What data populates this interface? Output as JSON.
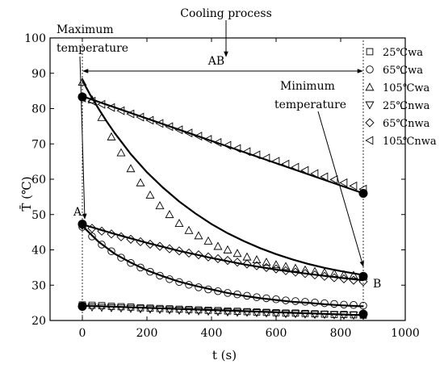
{
  "chart_data": {
    "type": "scatter",
    "title": "",
    "xlabel": "t (s)",
    "ylabel": "T̄ (℃)",
    "xlim": [
      -100,
      1000
    ],
    "ylim": [
      20,
      100
    ],
    "x_ticks": [
      0,
      200,
      400,
      600,
      800,
      1000
    ],
    "y_ticks": [
      20,
      30,
      40,
      50,
      60,
      70,
      80,
      90,
      100
    ],
    "grid": false,
    "legend_position": "right",
    "series": [
      {
        "name": "25℃wa",
        "marker": "square",
        "points": [
          [
            0,
            24.4
          ],
          [
            30,
            24.3
          ],
          [
            60,
            24.2
          ],
          [
            90,
            24.0
          ],
          [
            120,
            23.9
          ],
          [
            150,
            23.8
          ],
          [
            180,
            23.6
          ],
          [
            210,
            23.5
          ],
          [
            240,
            23.4
          ],
          [
            270,
            23.3
          ],
          [
            300,
            23.2
          ],
          [
            330,
            23.1
          ],
          [
            360,
            23.0
          ],
          [
            390,
            22.9
          ],
          [
            420,
            22.8
          ],
          [
            450,
            22.7
          ],
          [
            480,
            22.6
          ],
          [
            510,
            22.5
          ],
          [
            540,
            22.4
          ],
          [
            570,
            22.3
          ],
          [
            600,
            22.2
          ],
          [
            630,
            22.1
          ],
          [
            660,
            22.1
          ],
          [
            690,
            22.0
          ],
          [
            720,
            21.9
          ],
          [
            750,
            21.8
          ],
          [
            780,
            21.7
          ],
          [
            810,
            21.7
          ],
          [
            840,
            21.6
          ],
          [
            870,
            21.5
          ]
        ]
      },
      {
        "name": "65℃wa",
        "marker": "circle",
        "points": [
          [
            0,
            46.5
          ],
          [
            30,
            43.8
          ],
          [
            60,
            41.5
          ],
          [
            90,
            39.6
          ],
          [
            120,
            37.8
          ],
          [
            150,
            36.3
          ],
          [
            180,
            35.0
          ],
          [
            210,
            33.8
          ],
          [
            240,
            32.7
          ],
          [
            270,
            31.7
          ],
          [
            300,
            30.9
          ],
          [
            330,
            30.1
          ],
          [
            360,
            29.4
          ],
          [
            390,
            28.8
          ],
          [
            420,
            28.3
          ],
          [
            450,
            27.8
          ],
          [
            480,
            27.4
          ],
          [
            510,
            27.0
          ],
          [
            540,
            26.6
          ],
          [
            570,
            26.3
          ],
          [
            600,
            26.0
          ],
          [
            630,
            25.7
          ],
          [
            660,
            25.5
          ],
          [
            690,
            25.3
          ],
          [
            720,
            25.1
          ],
          [
            750,
            24.9
          ],
          [
            780,
            24.7
          ],
          [
            810,
            24.5
          ],
          [
            840,
            24.4
          ],
          [
            870,
            24.2
          ]
        ]
      },
      {
        "name": "105℃wa",
        "marker": "triangle-up",
        "points": [
          [
            0,
            87.5
          ],
          [
            30,
            82.5
          ],
          [
            60,
            77.5
          ],
          [
            90,
            72.0
          ],
          [
            120,
            67.5
          ],
          [
            150,
            63.0
          ],
          [
            180,
            59.0
          ],
          [
            210,
            55.5
          ],
          [
            240,
            52.5
          ],
          [
            270,
            50.0
          ],
          [
            300,
            47.5
          ],
          [
            330,
            45.5
          ],
          [
            360,
            44.0
          ],
          [
            390,
            42.5
          ],
          [
            420,
            41.0
          ],
          [
            450,
            40.0
          ],
          [
            480,
            39.0
          ],
          [
            510,
            38.0
          ],
          [
            540,
            37.2
          ],
          [
            570,
            36.5
          ],
          [
            600,
            35.8
          ],
          [
            630,
            35.3
          ],
          [
            660,
            34.8
          ],
          [
            690,
            34.3
          ],
          [
            720,
            33.9
          ],
          [
            750,
            33.6
          ],
          [
            780,
            33.3
          ],
          [
            810,
            33.0
          ],
          [
            840,
            32.8
          ],
          [
            870,
            32.5
          ]
        ]
      },
      {
        "name": "25℃nwa",
        "marker": "triangle-down",
        "points": [
          [
            0,
            23.9
          ],
          [
            30,
            23.8
          ],
          [
            60,
            23.7
          ],
          [
            90,
            23.6
          ],
          [
            120,
            23.5
          ],
          [
            150,
            23.4
          ],
          [
            180,
            23.3
          ],
          [
            210,
            23.2
          ],
          [
            240,
            23.1
          ],
          [
            270,
            23.0
          ],
          [
            300,
            22.9
          ],
          [
            330,
            22.8
          ],
          [
            360,
            22.7
          ],
          [
            390,
            22.6
          ],
          [
            420,
            22.5
          ],
          [
            450,
            22.4
          ],
          [
            480,
            22.3
          ],
          [
            510,
            22.3
          ],
          [
            540,
            22.2
          ],
          [
            570,
            22.1
          ],
          [
            600,
            22.0
          ],
          [
            630,
            21.9
          ],
          [
            660,
            21.9
          ],
          [
            690,
            21.8
          ],
          [
            720,
            21.7
          ],
          [
            750,
            21.7
          ],
          [
            780,
            21.6
          ],
          [
            810,
            21.5
          ],
          [
            840,
            21.5
          ],
          [
            870,
            21.4
          ]
        ]
      },
      {
        "name": "65℃nwa",
        "marker": "diamond",
        "points": [
          [
            0,
            47.0
          ],
          [
            30,
            46.1
          ],
          [
            60,
            45.3
          ],
          [
            90,
            44.5
          ],
          [
            120,
            43.7
          ],
          [
            150,
            43.0
          ],
          [
            180,
            42.3
          ],
          [
            210,
            41.6
          ],
          [
            240,
            41.0
          ],
          [
            270,
            40.3
          ],
          [
            300,
            39.7
          ],
          [
            330,
            39.1
          ],
          [
            360,
            38.6
          ],
          [
            390,
            38.0
          ],
          [
            420,
            37.5
          ],
          [
            450,
            37.0
          ],
          [
            480,
            36.5
          ],
          [
            510,
            36.0
          ],
          [
            540,
            35.5
          ],
          [
            570,
            35.0
          ],
          [
            600,
            34.6
          ],
          [
            630,
            34.1
          ],
          [
            660,
            33.7
          ],
          [
            690,
            33.3
          ],
          [
            720,
            32.9
          ],
          [
            750,
            32.5
          ],
          [
            780,
            32.1
          ],
          [
            810,
            31.8
          ],
          [
            840,
            31.4
          ],
          [
            870,
            31.0
          ]
        ]
      },
      {
        "name": "105℃nwa",
        "marker": "triangle-left",
        "points": [
          [
            0,
            83.0
          ],
          [
            30,
            82.1
          ],
          [
            60,
            81.2
          ],
          [
            90,
            80.3
          ],
          [
            120,
            79.4
          ],
          [
            150,
            78.5
          ],
          [
            180,
            77.6
          ],
          [
            210,
            76.7
          ],
          [
            240,
            75.8
          ],
          [
            270,
            74.9
          ],
          [
            300,
            74.0
          ],
          [
            330,
            73.1
          ],
          [
            360,
            72.2
          ],
          [
            390,
            71.3
          ],
          [
            420,
            70.4
          ],
          [
            450,
            69.6
          ],
          [
            480,
            68.7
          ],
          [
            510,
            67.8
          ],
          [
            540,
            66.9
          ],
          [
            570,
            66.0
          ],
          [
            600,
            65.1
          ],
          [
            630,
            64.3
          ],
          [
            660,
            63.4
          ],
          [
            690,
            62.5
          ],
          [
            720,
            61.6
          ],
          [
            750,
            60.7
          ],
          [
            780,
            59.9
          ],
          [
            810,
            59.0
          ],
          [
            840,
            58.1
          ],
          [
            870,
            57.2
          ]
        ]
      }
    ],
    "fit_curves": [
      {
        "points": [
          [
            0,
            24.2
          ],
          [
            870,
            21.5
          ]
        ]
      },
      {
        "points": [
          [
            0,
            46.8
          ],
          [
            50,
            42.3
          ],
          [
            100,
            38.9
          ],
          [
            150,
            36.4
          ],
          [
            200,
            34.2
          ],
          [
            250,
            32.5
          ],
          [
            300,
            31.0
          ],
          [
            350,
            29.8
          ],
          [
            400,
            28.8
          ],
          [
            450,
            27.8
          ],
          [
            500,
            27.0
          ],
          [
            550,
            26.3
          ],
          [
            600,
            25.8
          ],
          [
            650,
            25.3
          ],
          [
            700,
            25.0
          ],
          [
            750,
            24.6
          ],
          [
            800,
            24.3
          ],
          [
            850,
            24.1
          ],
          [
            870,
            24.0
          ]
        ]
      },
      {
        "points": [
          [
            0,
            88.0
          ],
          [
            25,
            83.8
          ],
          [
            50,
            80.0
          ],
          [
            75,
            76.4
          ],
          [
            100,
            73.1
          ],
          [
            150,
            67.1
          ],
          [
            200,
            62.0
          ],
          [
            250,
            57.6
          ],
          [
            300,
            53.7
          ],
          [
            350,
            50.3
          ],
          [
            400,
            47.3
          ],
          [
            450,
            44.7
          ],
          [
            500,
            42.5
          ],
          [
            550,
            40.5
          ],
          [
            600,
            38.8
          ],
          [
            650,
            37.3
          ],
          [
            700,
            36.0
          ],
          [
            750,
            34.9
          ],
          [
            800,
            34.0
          ],
          [
            850,
            33.2
          ],
          [
            870,
            32.9
          ]
        ]
      },
      {
        "points": [
          [
            0,
            47.2
          ],
          [
            100,
            44.5
          ],
          [
            200,
            42.0
          ],
          [
            300,
            39.7
          ],
          [
            400,
            37.7
          ],
          [
            500,
            35.9
          ],
          [
            600,
            34.4
          ],
          [
            700,
            33.2
          ],
          [
            800,
            32.1
          ],
          [
            870,
            31.4
          ]
        ]
      },
      {
        "points": [
          [
            0,
            83.5
          ],
          [
            870,
            56.0
          ]
        ]
      }
    ],
    "key_points": [
      [
        0,
        83.3
      ],
      [
        870,
        56.0
      ],
      [
        0,
        47.3
      ],
      [
        870,
        32.5
      ],
      [
        0,
        24.0
      ],
      [
        870,
        21.8
      ]
    ],
    "annotations": {
      "cooling_process": "Cooling process",
      "maximum_line1": "Maximum",
      "maximum_line2": "temperature",
      "minimum_line1": "Minimum",
      "minimum_line2": "temperature",
      "ab_label": "AB",
      "point_a": "A",
      "point_b": "B"
    },
    "ab_range": [
      0,
      870
    ]
  }
}
